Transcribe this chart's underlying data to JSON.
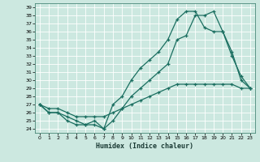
{
  "title": "",
  "xlabel": "Humidex (Indice chaleur)",
  "bg_color": "#cce8e0",
  "grid_color": "#ffffff",
  "line_color": "#1a6e60",
  "xlim": [
    -0.5,
    23.5
  ],
  "ylim": [
    23.5,
    39.5
  ],
  "xticks": [
    0,
    1,
    2,
    3,
    4,
    5,
    6,
    7,
    8,
    9,
    10,
    11,
    12,
    13,
    14,
    15,
    16,
    17,
    18,
    19,
    20,
    21,
    22,
    23
  ],
  "yticks": [
    24,
    25,
    26,
    27,
    28,
    29,
    30,
    31,
    32,
    33,
    34,
    35,
    36,
    37,
    38,
    39
  ],
  "line1_x": [
    0,
    1,
    2,
    3,
    4,
    5,
    6,
    7,
    8,
    9,
    10,
    11,
    12,
    13,
    14,
    15,
    16,
    17,
    18,
    19,
    20,
    21,
    22,
    23
  ],
  "line1_y": [
    27,
    26,
    26,
    25,
    24.5,
    24.5,
    24.5,
    24,
    25,
    26.5,
    28,
    29,
    30,
    31,
    32,
    35,
    35.5,
    38,
    38,
    38.5,
    36,
    33.5,
    30,
    29
  ],
  "line2_x": [
    0,
    1,
    2,
    3,
    4,
    5,
    6,
    7,
    8,
    9,
    10,
    11,
    12,
    13,
    14,
    15,
    16,
    17,
    18,
    19,
    20,
    21,
    22,
    23
  ],
  "line2_y": [
    27,
    26,
    26,
    25.5,
    25,
    24.5,
    25,
    24,
    27,
    28,
    30,
    31.5,
    32.5,
    33.5,
    35,
    37.5,
    38.5,
    38.5,
    36.5,
    36,
    36,
    33,
    30.5,
    29
  ],
  "line3_x": [
    0,
    1,
    2,
    3,
    4,
    5,
    6,
    7,
    8,
    9,
    10,
    11,
    12,
    13,
    14,
    15,
    16,
    17,
    18,
    19,
    20,
    21,
    22,
    23
  ],
  "line3_y": [
    27,
    26.5,
    26.5,
    26,
    25.5,
    25.5,
    25.5,
    25.5,
    26,
    26.5,
    27,
    27.5,
    28,
    28.5,
    29,
    29.5,
    29.5,
    29.5,
    29.5,
    29.5,
    29.5,
    29.5,
    29,
    29
  ]
}
